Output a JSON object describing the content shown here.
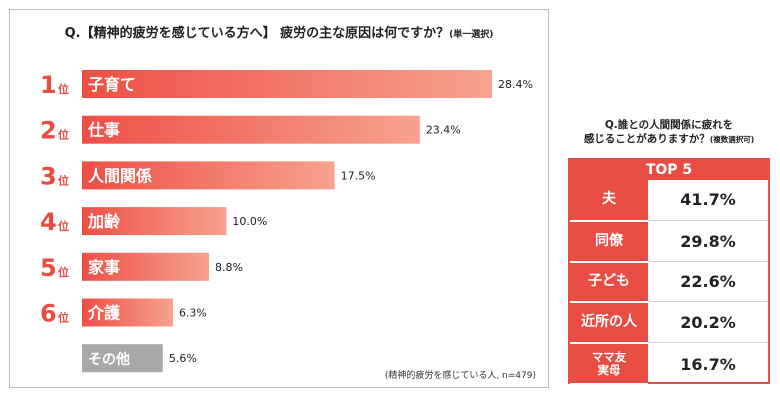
{
  "title_main": "Q.【精神的疲労を感じている方へ】 疲労の主な原因は何ですか？",
  "title_note": "(単一選択)",
  "rank_suffix": "位",
  "footnote": "(精神的疲労を感じている人, n=479)",
  "colors": {
    "bar_start": "#ee4f45",
    "bar_end": "#f7a28f",
    "bar_other": "#a8a8a8",
    "rank": "#e94c43",
    "accent": "#e94c43"
  },
  "chart_data": {
    "type": "bar",
    "orientation": "horizontal",
    "title": "Q.【精神的疲労を感じている方へ】 疲労の主な原因は何ですか？(単一選択)",
    "categories": [
      "子育て",
      "仕事",
      "人間関係",
      "加齢",
      "家事",
      "介護",
      "その他"
    ],
    "ranks": [
      "1",
      "2",
      "3",
      "4",
      "5",
      "6",
      ""
    ],
    "values": [
      28.4,
      23.4,
      17.5,
      10.0,
      8.8,
      6.3,
      5.6
    ],
    "value_labels": [
      "28.4%",
      "23.4%",
      "17.5%",
      "10.0%",
      "8.8%",
      "6.3%",
      "5.6%"
    ],
    "unit": "%",
    "xlim": [
      0,
      28.4
    ],
    "grid": false,
    "legend": "none"
  },
  "top5": {
    "title_line1": "Q.誰との人間関係に疲れを",
    "title_line2": "感じることがありますか？",
    "title_note": "(複数選択可)",
    "header": "TOP 5",
    "rows": [
      {
        "label": "夫",
        "value": "41.7%"
      },
      {
        "label": "同僚",
        "value": "29.8%"
      },
      {
        "label": "子ども",
        "value": "22.6%"
      },
      {
        "label": "近所の人",
        "value": "20.2%"
      },
      {
        "label": "ママ友\n実母",
        "value": "16.7%"
      }
    ]
  }
}
